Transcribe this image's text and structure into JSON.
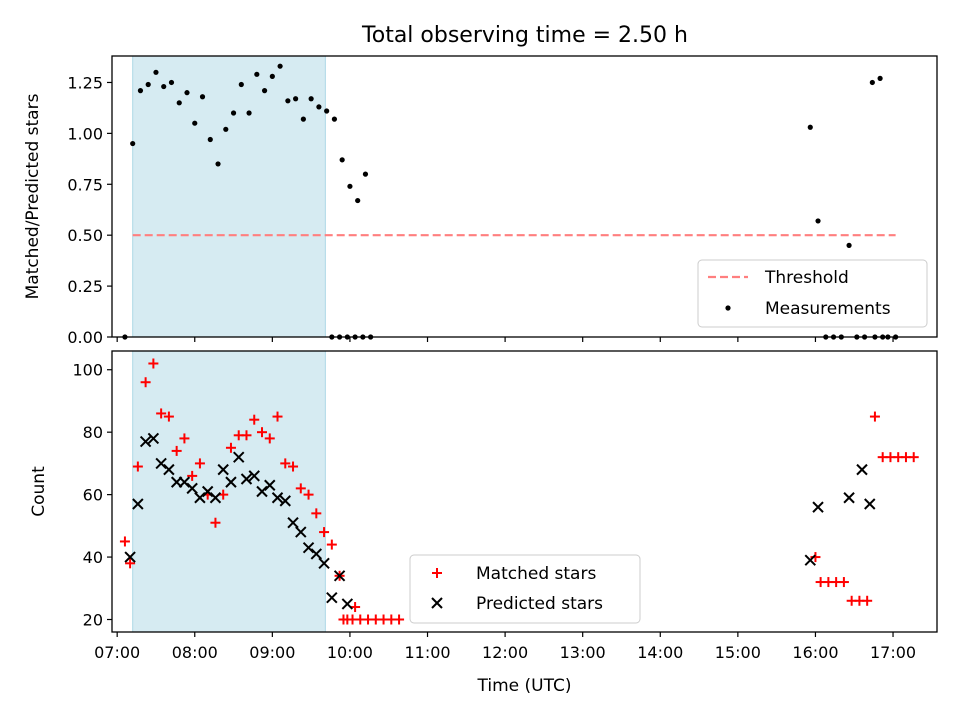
{
  "title": "Total observing time = 2.50 h",
  "colors": {
    "band": "#add8e6",
    "threshold": "#ff7f7f",
    "measurement": "#000000",
    "matched": "#ff0000",
    "predicted": "#000000"
  },
  "chart_data": [
    {
      "type": "scatter",
      "panel": "top",
      "ylabel": "Matched/Predicted stars",
      "ylim": [
        0,
        1.38
      ],
      "xlim": [
        "06:56",
        "17:34"
      ],
      "yticks": [
        "0.00",
        "0.25",
        "0.50",
        "0.75",
        "1.00",
        "1.25"
      ],
      "highlight_band": {
        "start": "07:12",
        "end": "09:41"
      },
      "threshold": {
        "name": "Threshold",
        "value": 0.5,
        "start": "07:12",
        "end": "17:02"
      },
      "legend": {
        "placement": "lower right",
        "entries": [
          "Threshold",
          "Measurements"
        ]
      },
      "series": [
        {
          "name": "Measurements",
          "marker": "dot",
          "points": [
            [
              "07:06",
              0.0
            ],
            [
              "07:12",
              0.95
            ],
            [
              "07:18",
              1.21
            ],
            [
              "07:24",
              1.24
            ],
            [
              "07:30",
              1.3
            ],
            [
              "07:36",
              1.23
            ],
            [
              "07:42",
              1.25
            ],
            [
              "07:48",
              1.15
            ],
            [
              "07:54",
              1.2
            ],
            [
              "08:00",
              1.05
            ],
            [
              "08:06",
              1.18
            ],
            [
              "08:12",
              0.97
            ],
            [
              "08:18",
              0.85
            ],
            [
              "08:24",
              1.02
            ],
            [
              "08:30",
              1.1
            ],
            [
              "08:36",
              1.24
            ],
            [
              "08:42",
              1.1
            ],
            [
              "08:48",
              1.29
            ],
            [
              "08:54",
              1.21
            ],
            [
              "09:00",
              1.28
            ],
            [
              "09:06",
              1.33
            ],
            [
              "09:12",
              1.16
            ],
            [
              "09:18",
              1.17
            ],
            [
              "09:24",
              1.07
            ],
            [
              "09:30",
              1.17
            ],
            [
              "09:36",
              1.13
            ],
            [
              "09:42",
              1.11
            ],
            [
              "09:48",
              1.07
            ],
            [
              "09:54",
              0.87
            ],
            [
              "10:00",
              0.74
            ],
            [
              "10:06",
              0.67
            ],
            [
              "10:12",
              0.8
            ],
            [
              "09:46",
              0.0
            ],
            [
              "09:52",
              0.0
            ],
            [
              "09:58",
              0.0
            ],
            [
              "10:04",
              0.0
            ],
            [
              "10:10",
              0.0
            ],
            [
              "10:16",
              0.0
            ],
            [
              "15:56",
              1.03
            ],
            [
              "16:02",
              0.57
            ],
            [
              "16:08",
              0.0
            ],
            [
              "16:14",
              0.0
            ],
            [
              "16:20",
              0.0
            ],
            [
              "16:26",
              0.45
            ],
            [
              "16:32",
              0.0
            ],
            [
              "16:38",
              0.0
            ],
            [
              "16:44",
              1.25
            ],
            [
              "16:50",
              1.27
            ],
            [
              "16:56",
              0.0
            ],
            [
              "17:02",
              0.0
            ],
            [
              "16:46",
              0.0
            ],
            [
              "16:52",
              0.0
            ]
          ]
        }
      ]
    },
    {
      "type": "scatter",
      "panel": "bottom",
      "xlabel": "Time (UTC)",
      "ylabel": "Count",
      "ylim": [
        16,
        106
      ],
      "xlim": [
        "06:56",
        "17:34"
      ],
      "yticks": [
        "20",
        "40",
        "60",
        "80",
        "100"
      ],
      "xticks": [
        "07:00",
        "08:00",
        "09:00",
        "10:00",
        "11:00",
        "12:00",
        "13:00",
        "14:00",
        "15:00",
        "16:00",
        "17:00"
      ],
      "highlight_band": {
        "start": "07:12",
        "end": "09:41"
      },
      "legend": {
        "placement": "lower center",
        "entries": [
          "Matched stars",
          "Predicted stars"
        ]
      },
      "series": [
        {
          "name": "Matched stars",
          "marker": "plus",
          "points": [
            [
              "07:06",
              45
            ],
            [
              "07:10",
              38
            ],
            [
              "07:16",
              69
            ],
            [
              "07:22",
              96
            ],
            [
              "07:28",
              102
            ],
            [
              "07:34",
              86
            ],
            [
              "07:40",
              85
            ],
            [
              "07:46",
              74
            ],
            [
              "07:52",
              78
            ],
            [
              "07:58",
              66
            ],
            [
              "08:04",
              70
            ],
            [
              "08:10",
              60
            ],
            [
              "08:16",
              51
            ],
            [
              "08:22",
              60
            ],
            [
              "08:28",
              75
            ],
            [
              "08:34",
              79
            ],
            [
              "08:40",
              79
            ],
            [
              "08:46",
              84
            ],
            [
              "08:52",
              80
            ],
            [
              "08:58",
              78
            ],
            [
              "09:04",
              85
            ],
            [
              "09:10",
              70
            ],
            [
              "09:16",
              69
            ],
            [
              "09:22",
              62
            ],
            [
              "09:28",
              60
            ],
            [
              "09:34",
              54
            ],
            [
              "09:40",
              48
            ],
            [
              "09:46",
              44
            ],
            [
              "09:52",
              34
            ],
            [
              "09:58",
              20
            ],
            [
              "10:04",
              24
            ],
            [
              "09:55",
              20
            ],
            [
              "10:02",
              20
            ],
            [
              "10:08",
              20
            ],
            [
              "10:14",
              20
            ],
            [
              "10:20",
              20
            ],
            [
              "10:26",
              20
            ],
            [
              "10:32",
              20
            ],
            [
              "10:38",
              20
            ],
            [
              "16:00",
              40
            ],
            [
              "16:04",
              32
            ],
            [
              "16:10",
              32
            ],
            [
              "16:16",
              32
            ],
            [
              "16:22",
              32
            ],
            [
              "16:28",
              26
            ],
            [
              "16:34",
              26
            ],
            [
              "16:40",
              26
            ],
            [
              "16:46",
              85
            ],
            [
              "16:52",
              72
            ],
            [
              "16:58",
              72
            ],
            [
              "17:04",
              72
            ],
            [
              "17:10",
              72
            ],
            [
              "17:16",
              72
            ]
          ]
        },
        {
          "name": "Predicted stars",
          "marker": "x",
          "points": [
            [
              "07:10",
              40
            ],
            [
              "07:16",
              57
            ],
            [
              "07:22",
              77
            ],
            [
              "07:28",
              78
            ],
            [
              "07:34",
              70
            ],
            [
              "07:40",
              68
            ],
            [
              "07:46",
              64
            ],
            [
              "07:52",
              64
            ],
            [
              "07:58",
              62
            ],
            [
              "08:04",
              59
            ],
            [
              "08:10",
              61
            ],
            [
              "08:16",
              59
            ],
            [
              "08:22",
              68
            ],
            [
              "08:28",
              64
            ],
            [
              "08:34",
              72
            ],
            [
              "08:40",
              65
            ],
            [
              "08:46",
              66
            ],
            [
              "08:52",
              61
            ],
            [
              "08:58",
              63
            ],
            [
              "09:04",
              59
            ],
            [
              "09:10",
              58
            ],
            [
              "09:16",
              51
            ],
            [
              "09:22",
              48
            ],
            [
              "09:28",
              43
            ],
            [
              "09:34",
              41
            ],
            [
              "09:40",
              38
            ],
            [
              "09:46",
              27
            ],
            [
              "09:52",
              34
            ],
            [
              "09:58",
              25
            ],
            [
              "15:56",
              39
            ],
            [
              "16:02",
              56
            ],
            [
              "16:26",
              59
            ],
            [
              "16:36",
              68
            ],
            [
              "16:42",
              57
            ]
          ]
        }
      ]
    }
  ]
}
